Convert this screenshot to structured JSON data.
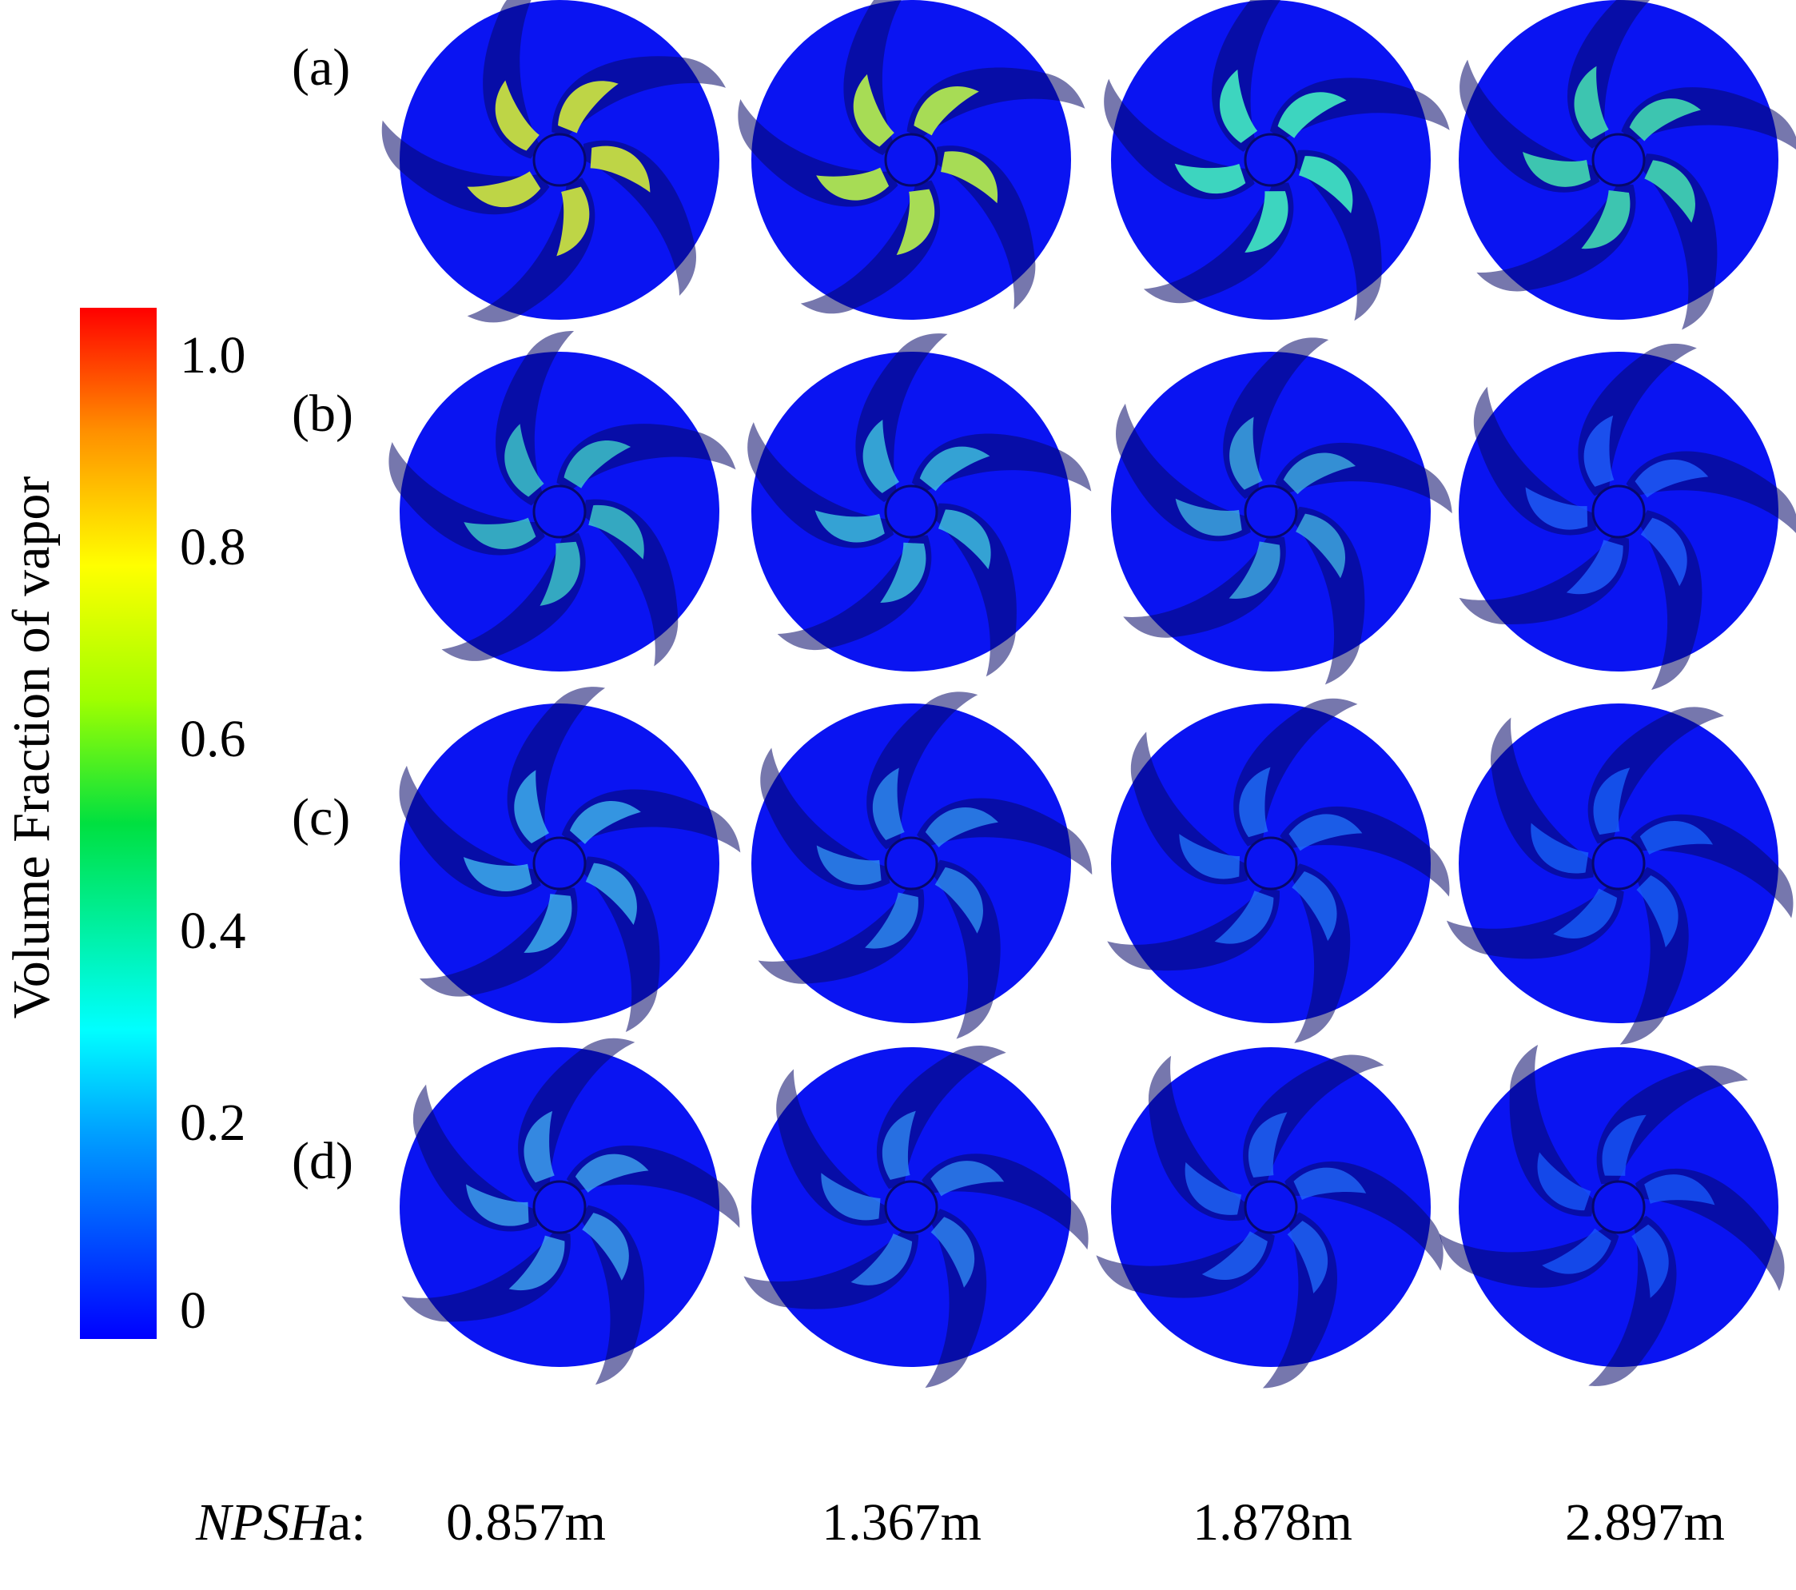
{
  "colorbar": {
    "title": "Volume Fraction of vapor",
    "ticks": [
      "1.0",
      "0.8",
      "0.6",
      "0.4",
      "0.2",
      "0"
    ],
    "tick_values": [
      1.0,
      0.8,
      0.6,
      0.4,
      0.2,
      0.0
    ],
    "min": 0.0,
    "max": 1.0,
    "colors": [
      "#0000ff",
      "#00ffff",
      "#00ff00",
      "#ffff00",
      "#ff0000"
    ]
  },
  "rows": [
    "(a)",
    "(b)",
    "(c)",
    "(d)"
  ],
  "npsh": {
    "label_italic": "NPSH",
    "label_suffix": "a:",
    "values": [
      "0.857m",
      "1.367m",
      "1.878m",
      "2.897m"
    ]
  },
  "colors": {
    "background": "#ffffff",
    "impeller_fill": "#0a14f2",
    "blade_dark": "#06086a"
  }
}
